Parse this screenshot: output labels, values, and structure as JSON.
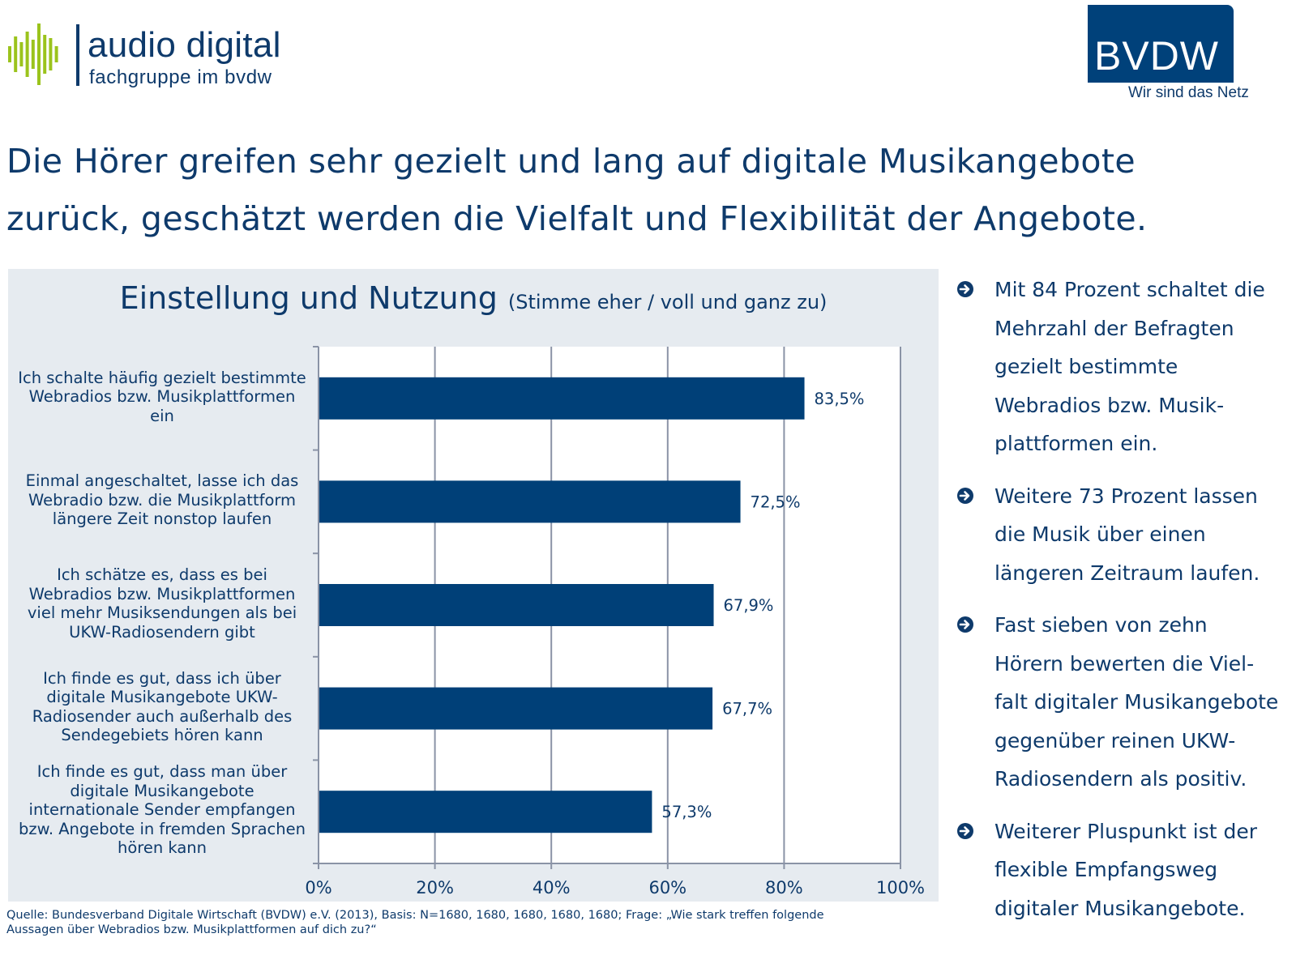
{
  "logos": {
    "audio_digital": {
      "name": "audio digital",
      "subtitle": "fachgruppe im bvdw",
      "wave_color": "#9bc31c",
      "text_color": "#0e3a6b"
    },
    "bvdw": {
      "name": "BVDW",
      "claim": "Wir sind das Netz",
      "box_color": "#00417a"
    }
  },
  "headline": {
    "line1": "Die Hörer greifen sehr gezielt und lang auf digitale Musikangebote",
    "line2": "zurück, geschätzt werden die Vielfalt und Flexibilität der Angebote."
  },
  "chart_data": {
    "type": "bar",
    "orientation": "horizontal",
    "title": "Einstellung und Nutzung",
    "subtitle": "(Stimme eher / voll und ganz zu)",
    "categories": [
      "Ich schalte häufig gezielt bestimmte Webradios bzw. Musikplattformen ein",
      "Einmal angeschaltet, lasse ich das Webradio bzw. die Musikplattform längere Zeit nonstop laufen",
      "Ich schätze es, dass es bei Webradios bzw. Musikplattformen viel mehr Musiksendungen als bei UKW-Radiosendern gibt",
      "Ich finde es gut, dass ich über digitale Musikangebote UKW-Radiosender auch außerhalb des Sendegebiets hören kann",
      "Ich finde es gut, dass man über digitale Musikangebote internationale Sender empfangen bzw. Angebote in fremden Sprachen hören kann"
    ],
    "category_lines": [
      [
        "Ich schalte häufig gezielt bestimmte",
        "Webradios bzw. Musikplattformen",
        "ein"
      ],
      [
        "Einmal angeschaltet, lasse ich das",
        "Webradio bzw. die Musikplattform",
        "längere Zeit nonstop laufen"
      ],
      [
        "Ich schätze es, dass es bei",
        "Webradios bzw. Musikplattformen",
        "viel mehr Musiksendungen als bei",
        "UKW-Radiosendern gibt"
      ],
      [
        "Ich finde es gut, dass ich über",
        "digitale Musikangebote UKW-",
        "Radiosender auch außerhalb des",
        "Sendegebiets hören kann"
      ],
      [
        "Ich finde es gut, dass man über",
        "digitale Musikangebote",
        "internationale Sender empfangen",
        "bzw. Angebote in fremden Sprachen",
        "hören kann"
      ]
    ],
    "values": [
      83.5,
      72.5,
      67.9,
      67.7,
      57.3
    ],
    "data_labels": [
      "83,5%",
      "72,5%",
      "67,9%",
      "67,7%",
      "57,3%"
    ],
    "xlabel": "",
    "ylabel": "",
    "xlim": [
      0,
      100
    ],
    "xticks": [
      0,
      20,
      40,
      60,
      80,
      100
    ],
    "xtick_labels": [
      "0%",
      "20%",
      "40%",
      "60%",
      "80%",
      "100%"
    ],
    "grid": true,
    "legend": "none",
    "bar_color": "#004078",
    "grid_color": "#8a93a6",
    "plot_bg": "#ffffff",
    "panel_bg": "#e6ebf0"
  },
  "bullets": [
    {
      "icon": "arrow-circle-right-icon",
      "lines": [
        "Mit 84 Prozent schaltet die",
        "Mehrzahl der Befragten",
        "gezielt bestimmte",
        "Webradios bzw. Musik-",
        "plattformen ein."
      ]
    },
    {
      "icon": "arrow-circle-right-icon",
      "lines": [
        "Weitere 73 Prozent lassen",
        "die Musik über einen",
        "längeren Zeitraum laufen."
      ]
    },
    {
      "icon": "arrow-circle-right-icon",
      "lines": [
        "Fast sieben von zehn",
        "Hörern bewerten die Viel-",
        "falt digitaler Musikangebote",
        "gegenüber reinen UKW-",
        "Radiosendern als positiv."
      ]
    },
    {
      "icon": "arrow-circle-right-icon",
      "lines": [
        "Weiterer Pluspunkt ist der",
        "flexible Empfangsweg",
        "digitaler Musikangebote."
      ]
    }
  ],
  "source": {
    "line1": "Quelle: Bundesverband Digitale Wirtschaft (BVDW) e.V. (2013), Basis: N=1680, 1680, 1680, 1680, 1680;  Frage: „Wie stark treffen folgende",
    "line2": "Aussagen über Webradios bzw. Musikplattformen auf dich zu?“"
  }
}
